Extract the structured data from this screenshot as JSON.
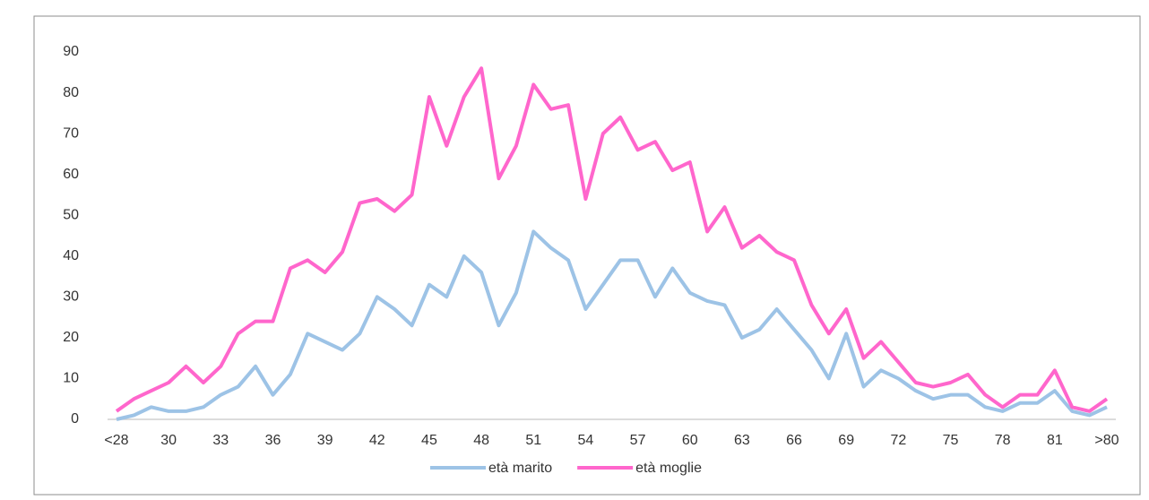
{
  "chart_data": {
    "type": "line",
    "categories": [
      "<28",
      null,
      null,
      "30",
      null,
      null,
      "33",
      null,
      null,
      "36",
      null,
      null,
      "39",
      null,
      null,
      "42",
      null,
      null,
      "45",
      null,
      null,
      "48",
      null,
      null,
      "51",
      null,
      null,
      "54",
      null,
      null,
      "57",
      null,
      null,
      "60",
      null,
      null,
      "63",
      null,
      null,
      "66",
      null,
      null,
      "69",
      null,
      null,
      "72",
      null,
      null,
      "75",
      null,
      null,
      "78",
      null,
      null,
      "81",
      null,
      null,
      ">80"
    ],
    "series": [
      {
        "name": "età marito",
        "color": "#9dc3e6",
        "values": [
          0,
          1,
          3,
          2,
          2,
          3,
          6,
          8,
          13,
          6,
          11,
          21,
          19,
          17,
          21,
          30,
          27,
          23,
          33,
          30,
          40,
          36,
          23,
          31,
          46,
          42,
          39,
          27,
          33,
          39,
          39,
          30,
          37,
          31,
          29,
          28,
          20,
          22,
          27,
          22,
          17,
          10,
          21,
          8,
          12,
          10,
          7,
          5,
          6,
          6,
          3,
          2,
          4,
          4,
          7,
          2,
          1,
          3
        ]
      },
      {
        "name": "età moglie",
        "color": "#ff66cc",
        "values": [
          2,
          5,
          7,
          9,
          13,
          9,
          13,
          21,
          24,
          24,
          37,
          39,
          36,
          41,
          53,
          54,
          51,
          55,
          79,
          67,
          79,
          86,
          59,
          67,
          82,
          76,
          77,
          54,
          70,
          74,
          66,
          68,
          61,
          63,
          46,
          52,
          42,
          45,
          41,
          39,
          28,
          21,
          27,
          15,
          19,
          14,
          9,
          8,
          9,
          11,
          6,
          3,
          6,
          6,
          12,
          3,
          2,
          5
        ]
      }
    ],
    "ylim": [
      0,
      90
    ],
    "yticks": [
      0,
      10,
      20,
      30,
      40,
      50,
      60,
      70,
      80,
      90
    ],
    "grid": false,
    "legend": "bottom"
  }
}
